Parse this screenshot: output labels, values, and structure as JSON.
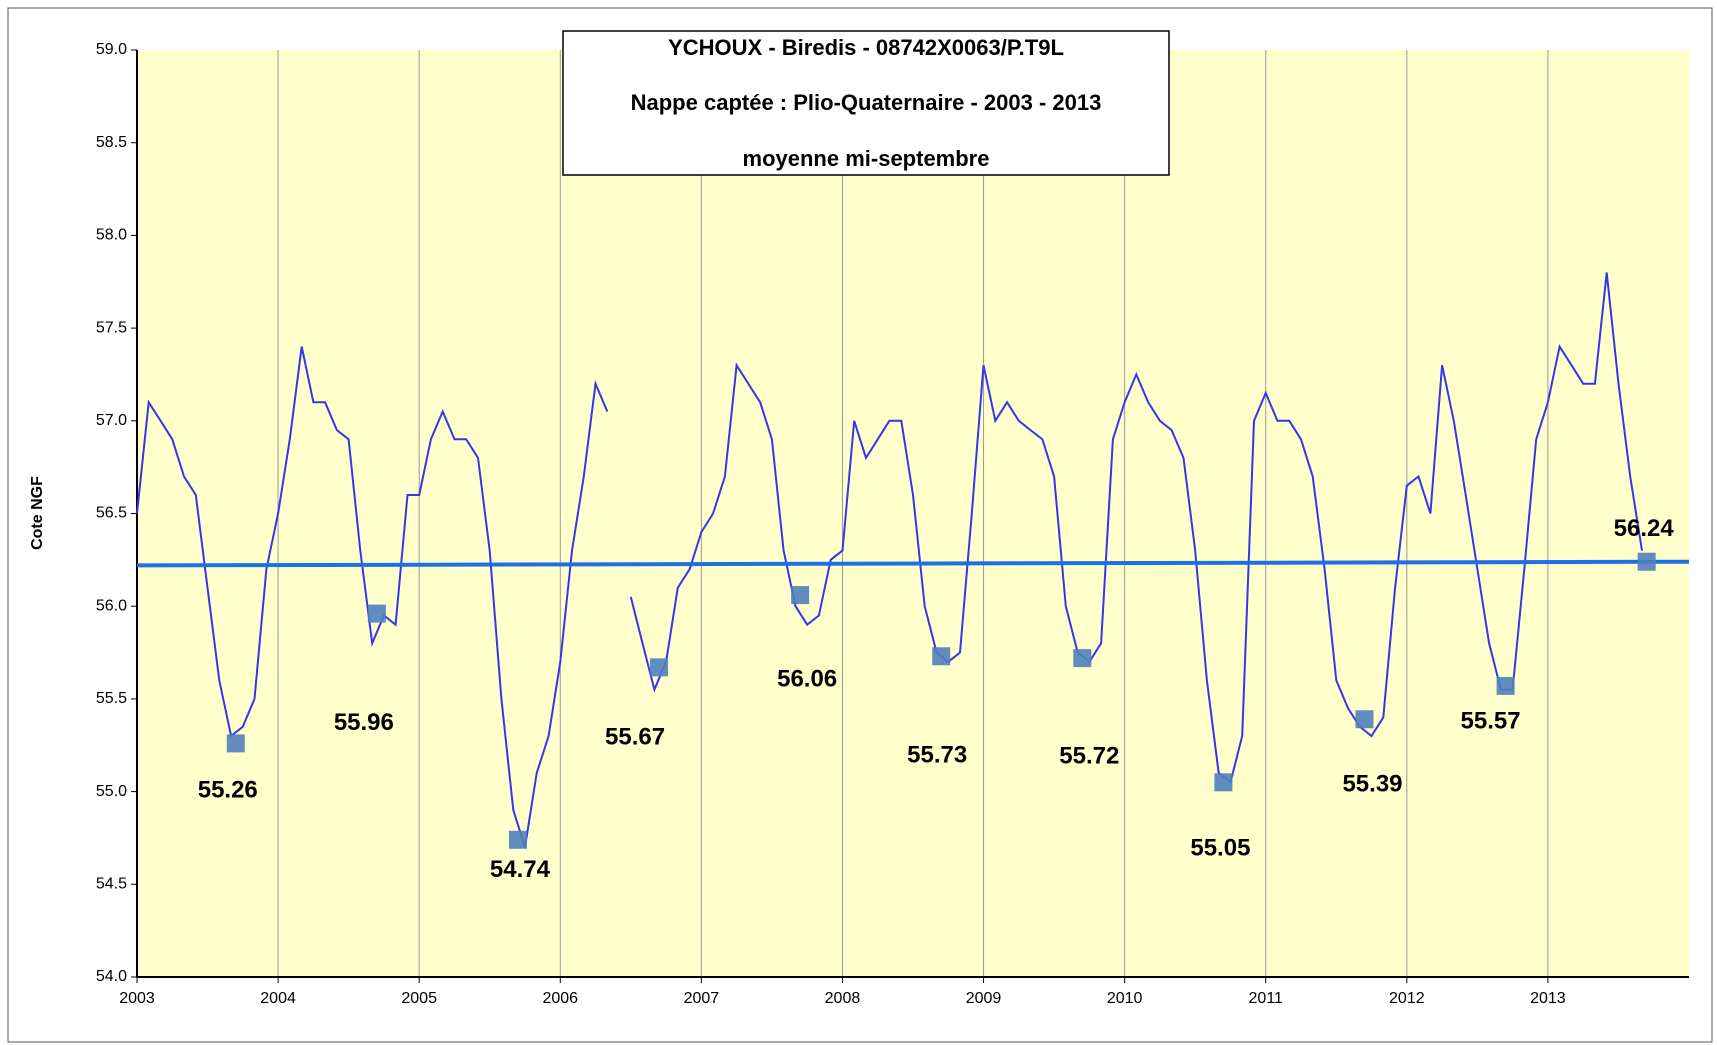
{
  "chart_data": {
    "type": "line",
    "title": [
      "YCHOUX - Biredis - 08742X0063/P.T9L",
      "Nappe captée : Plio-Quaternaire  -   2003 - 2013",
      "moyenne mi-septembre"
    ],
    "ylabel": "Cote NGF",
    "xlim": [
      2003,
      2014
    ],
    "xticks": [
      2003,
      2004,
      2005,
      2006,
      2007,
      2008,
      2009,
      2010,
      2011,
      2012,
      2013
    ],
    "ylim": [
      54,
      59
    ],
    "yticks": [
      {
        "value": 54,
        "label": "54.0"
      },
      54.5,
      {
        "value": 55,
        "label": "55.0"
      },
      55.5,
      {
        "value": 56,
        "label": "56.0"
      },
      56.5,
      {
        "value": 57,
        "label": "57.0"
      },
      57.5,
      {
        "value": 58,
        "label": "58.0"
      },
      58.5,
      {
        "value": 59,
        "label": "59.0"
      }
    ],
    "grid": "x",
    "x": [
      2003,
      2003.083,
      2003.167,
      2003.25,
      2003.333,
      2003.417,
      2003.5,
      2003.583,
      2003.667,
      2003.75,
      2003.833,
      2003.917,
      2004,
      2004.083,
      2004.167,
      2004.25,
      2004.333,
      2004.417,
      2004.5,
      2004.583,
      2004.667,
      2004.75,
      2004.833,
      2004.917,
      2005,
      2005.083,
      2005.167,
      2005.25,
      2005.333,
      2005.417,
      2005.5,
      2005.583,
      2005.667,
      2005.75,
      2005.833,
      2005.917,
      2006,
      2006.083,
      2006.167,
      2006.25,
      2006.333,
      2006.417,
      2006.5,
      2006.583,
      2006.667,
      2006.75,
      2006.833,
      2006.917,
      2007,
      2007.083,
      2007.167,
      2007.25,
      2007.333,
      2007.417,
      2007.5,
      2007.583,
      2007.667,
      2007.75,
      2007.833,
      2007.917,
      2008,
      2008.083,
      2008.167,
      2008.25,
      2008.333,
      2008.417,
      2008.5,
      2008.583,
      2008.667,
      2008.75,
      2008.833,
      2008.917,
      2009,
      2009.083,
      2009.167,
      2009.25,
      2009.333,
      2009.417,
      2009.5,
      2009.583,
      2009.667,
      2009.75,
      2009.833,
      2009.917,
      2010,
      2010.083,
      2010.167,
      2010.25,
      2010.333,
      2010.417,
      2010.5,
      2010.583,
      2010.667,
      2010.75,
      2010.833,
      2010.917,
      2011,
      2011.083,
      2011.167,
      2011.25,
      2011.333,
      2011.417,
      2011.5,
      2011.583,
      2011.667,
      2011.75,
      2011.833,
      2011.917,
      2012,
      2012.083,
      2012.167,
      2012.25,
      2012.333,
      2012.417,
      2012.5,
      2012.583,
      2012.667,
      2012.75,
      2012.833,
      2012.917,
      2013,
      2013.083,
      2013.167,
      2013.25,
      2013.333,
      2013.417,
      2013.5,
      2013.583,
      2013.667
    ],
    "series": [
      {
        "color": "#3535ec",
        "values": [
          56.5,
          57.1,
          57.0,
          56.9,
          56.7,
          56.6,
          56.1,
          55.6,
          55.3,
          55.35,
          55.5,
          56.2,
          56.5,
          56.9,
          57.4,
          57.1,
          57.1,
          56.95,
          56.9,
          56.3,
          55.8,
          55.95,
          55.9,
          56.6,
          56.6,
          56.9,
          57.05,
          56.9,
          56.9,
          56.8,
          56.3,
          55.5,
          54.9,
          54.7,
          55.1,
          55.3,
          55.7,
          56.3,
          56.7,
          57.2,
          57.05,
          null,
          56.05,
          55.8,
          55.55,
          55.7,
          56.1,
          56.2,
          56.4,
          56.5,
          56.7,
          57.3,
          57.2,
          57.1,
          56.9,
          56.3,
          56.0,
          55.9,
          55.95,
          56.25,
          56.3,
          57.0,
          56.8,
          56.9,
          57.0,
          57.0,
          56.6,
          56.0,
          55.75,
          55.7,
          55.75,
          56.5,
          57.3,
          57.0,
          57.1,
          57.0,
          56.95,
          56.9,
          56.7,
          56.0,
          55.75,
          55.7,
          55.8,
          56.9,
          57.1,
          57.25,
          57.1,
          57.0,
          56.95,
          56.8,
          56.3,
          55.6,
          55.1,
          55.05,
          55.3,
          57.0,
          57.15,
          57.0,
          57.0,
          56.9,
          56.7,
          56.2,
          55.6,
          55.45,
          55.35,
          55.3,
          55.4,
          56.1,
          56.65,
          56.7,
          56.5,
          57.3,
          57.0,
          56.6,
          56.2,
          55.8,
          55.55,
          55.55,
          56.2,
          56.9,
          57.1,
          57.4,
          57.3,
          57.2,
          57.2,
          57.8,
          57.2,
          56.7,
          56.3
        ]
      },
      {
        "color": "#3535ec",
        "dashed": true,
        "values": [
          null,
          null,
          null,
          null,
          null,
          null,
          null,
          null,
          null,
          null,
          null,
          null,
          null,
          null,
          null,
          null,
          null,
          null,
          null,
          null,
          null,
          null,
          null,
          null,
          null,
          null,
          null,
          null,
          null,
          null,
          null,
          null,
          null,
          null,
          null,
          null,
          null,
          null,
          null,
          null,
          57.05,
          null,
          56.05,
          null,
          null,
          null,
          null,
          null,
          null,
          null,
          null,
          null,
          null,
          null,
          null,
          null,
          null,
          null,
          null,
          null,
          null,
          null,
          null,
          null,
          null,
          null,
          null,
          null,
          null,
          null,
          null,
          null,
          null,
          null,
          null,
          null,
          null,
          null,
          null,
          null,
          null,
          null,
          null,
          null,
          null,
          null,
          null,
          null,
          null,
          null,
          null,
          null,
          null,
          null,
          null,
          null,
          null,
          null,
          null,
          null,
          null,
          null,
          null,
          null,
          null,
          null,
          null,
          null,
          null,
          null,
          null,
          null,
          null,
          null,
          null,
          null,
          null,
          null,
          null,
          null,
          null,
          null,
          null,
          null,
          null,
          null,
          null,
          null,
          null
        ]
      }
    ],
    "trend": {
      "color": "#1c6fe6",
      "x": [
        2003,
        2014
      ],
      "values": [
        56.22,
        56.24
      ]
    },
    "markers": {
      "color": "#4f81bd",
      "x": [
        2003.7,
        2004.7,
        2005.7,
        2006.7,
        2007.7,
        2008.7,
        2009.7,
        2010.7,
        2011.7,
        2012.7,
        2013.7
      ],
      "values": [
        55.26,
        55.96,
        54.74,
        55.67,
        56.06,
        55.73,
        55.72,
        55.05,
        55.39,
        55.57,
        56.24
      ]
    },
    "plot_background": "#ffffcc"
  }
}
